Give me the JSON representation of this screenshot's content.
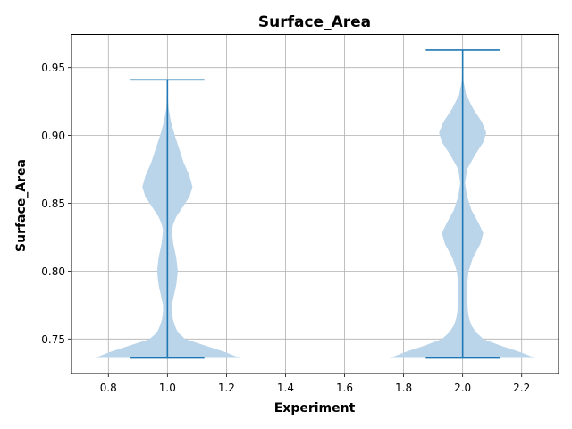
{
  "chart_data": {
    "type": "violin",
    "title": "Surface_Area",
    "xlabel": "Experiment",
    "ylabel": "Surface_Area",
    "xlim": [
      0.675,
      2.325
    ],
    "ylim": [
      0.7245,
      0.9745
    ],
    "xticks": [
      0.8,
      1.0,
      1.2,
      1.4,
      1.6,
      1.8,
      2.0,
      2.2
    ],
    "xtick_labels": [
      "0.8",
      "1.0",
      "1.2",
      "1.4",
      "1.6",
      "1.8",
      "2.0",
      "2.2"
    ],
    "yticks": [
      0.75,
      0.8,
      0.85,
      0.9,
      0.95
    ],
    "ytick_labels": [
      "0.75",
      "0.80",
      "0.85",
      "0.90",
      "0.95"
    ],
    "grid": true,
    "colors": {
      "body": "#bad4e9",
      "lines": "#1f77b4"
    },
    "violins": [
      {
        "position": 1.0,
        "min": 0.736,
        "max": 0.941,
        "profile": [
          [
            0.736,
            0.245
          ],
          [
            0.74,
            0.2
          ],
          [
            0.745,
            0.13
          ],
          [
            0.75,
            0.06
          ],
          [
            0.755,
            0.035
          ],
          [
            0.76,
            0.025
          ],
          [
            0.765,
            0.018
          ],
          [
            0.77,
            0.015
          ],
          [
            0.775,
            0.015
          ],
          [
            0.78,
            0.02
          ],
          [
            0.79,
            0.03
          ],
          [
            0.8,
            0.035
          ],
          [
            0.81,
            0.03
          ],
          [
            0.82,
            0.02
          ],
          [
            0.83,
            0.015
          ],
          [
            0.835,
            0.02
          ],
          [
            0.84,
            0.03
          ],
          [
            0.845,
            0.045
          ],
          [
            0.85,
            0.06
          ],
          [
            0.855,
            0.075
          ],
          [
            0.862,
            0.085
          ],
          [
            0.87,
            0.075
          ],
          [
            0.88,
            0.055
          ],
          [
            0.89,
            0.04
          ],
          [
            0.9,
            0.025
          ],
          [
            0.91,
            0.012
          ],
          [
            0.92,
            0.004
          ],
          [
            0.93,
            0.001
          ],
          [
            0.941,
            0.0
          ]
        ]
      },
      {
        "position": 2.0,
        "min": 0.736,
        "max": 0.963,
        "profile": [
          [
            0.736,
            0.245
          ],
          [
            0.74,
            0.2
          ],
          [
            0.745,
            0.13
          ],
          [
            0.75,
            0.07
          ],
          [
            0.755,
            0.045
          ],
          [
            0.76,
            0.03
          ],
          [
            0.765,
            0.022
          ],
          [
            0.77,
            0.018
          ],
          [
            0.78,
            0.015
          ],
          [
            0.79,
            0.015
          ],
          [
            0.8,
            0.02
          ],
          [
            0.81,
            0.035
          ],
          [
            0.82,
            0.06
          ],
          [
            0.828,
            0.07
          ],
          [
            0.835,
            0.055
          ],
          [
            0.845,
            0.03
          ],
          [
            0.855,
            0.015
          ],
          [
            0.865,
            0.008
          ],
          [
            0.875,
            0.015
          ],
          [
            0.885,
            0.04
          ],
          [
            0.895,
            0.07
          ],
          [
            0.902,
            0.08
          ],
          [
            0.91,
            0.065
          ],
          [
            0.92,
            0.035
          ],
          [
            0.93,
            0.012
          ],
          [
            0.94,
            0.003
          ],
          [
            0.95,
            0.001
          ],
          [
            0.963,
            0.0
          ]
        ]
      }
    ]
  }
}
